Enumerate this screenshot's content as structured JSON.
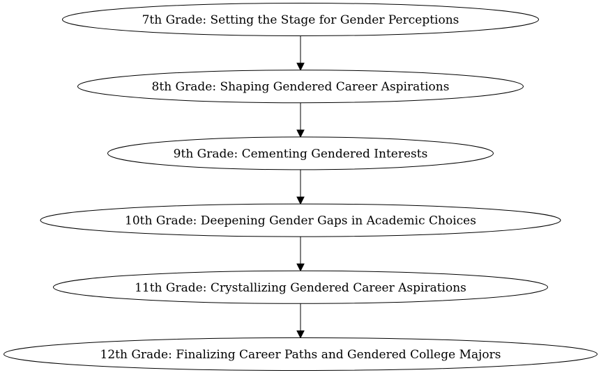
{
  "diagram": {
    "type": "flowchart",
    "direction": "top-to-bottom",
    "nodes": [
      {
        "id": "g7",
        "label": "7th Grade: Setting the Stage for Gender Perceptions"
      },
      {
        "id": "g8",
        "label": "8th Grade: Shaping Gendered Career Aspirations"
      },
      {
        "id": "g9",
        "label": "9th Grade: Cementing Gendered Interests"
      },
      {
        "id": "g10",
        "label": "10th Grade: Deepening Gender Gaps in Academic Choices"
      },
      {
        "id": "g11",
        "label": "11th Grade: Crystallizing Gendered Career Aspirations"
      },
      {
        "id": "g12",
        "label": "12th Grade: Finalizing Career Paths and Gendered College Majors"
      }
    ],
    "edges": [
      {
        "from": "g7",
        "to": "g8"
      },
      {
        "from": "g8",
        "to": "g9"
      },
      {
        "from": "g9",
        "to": "g10"
      },
      {
        "from": "g10",
        "to": "g11"
      },
      {
        "from": "g11",
        "to": "g12"
      }
    ]
  }
}
